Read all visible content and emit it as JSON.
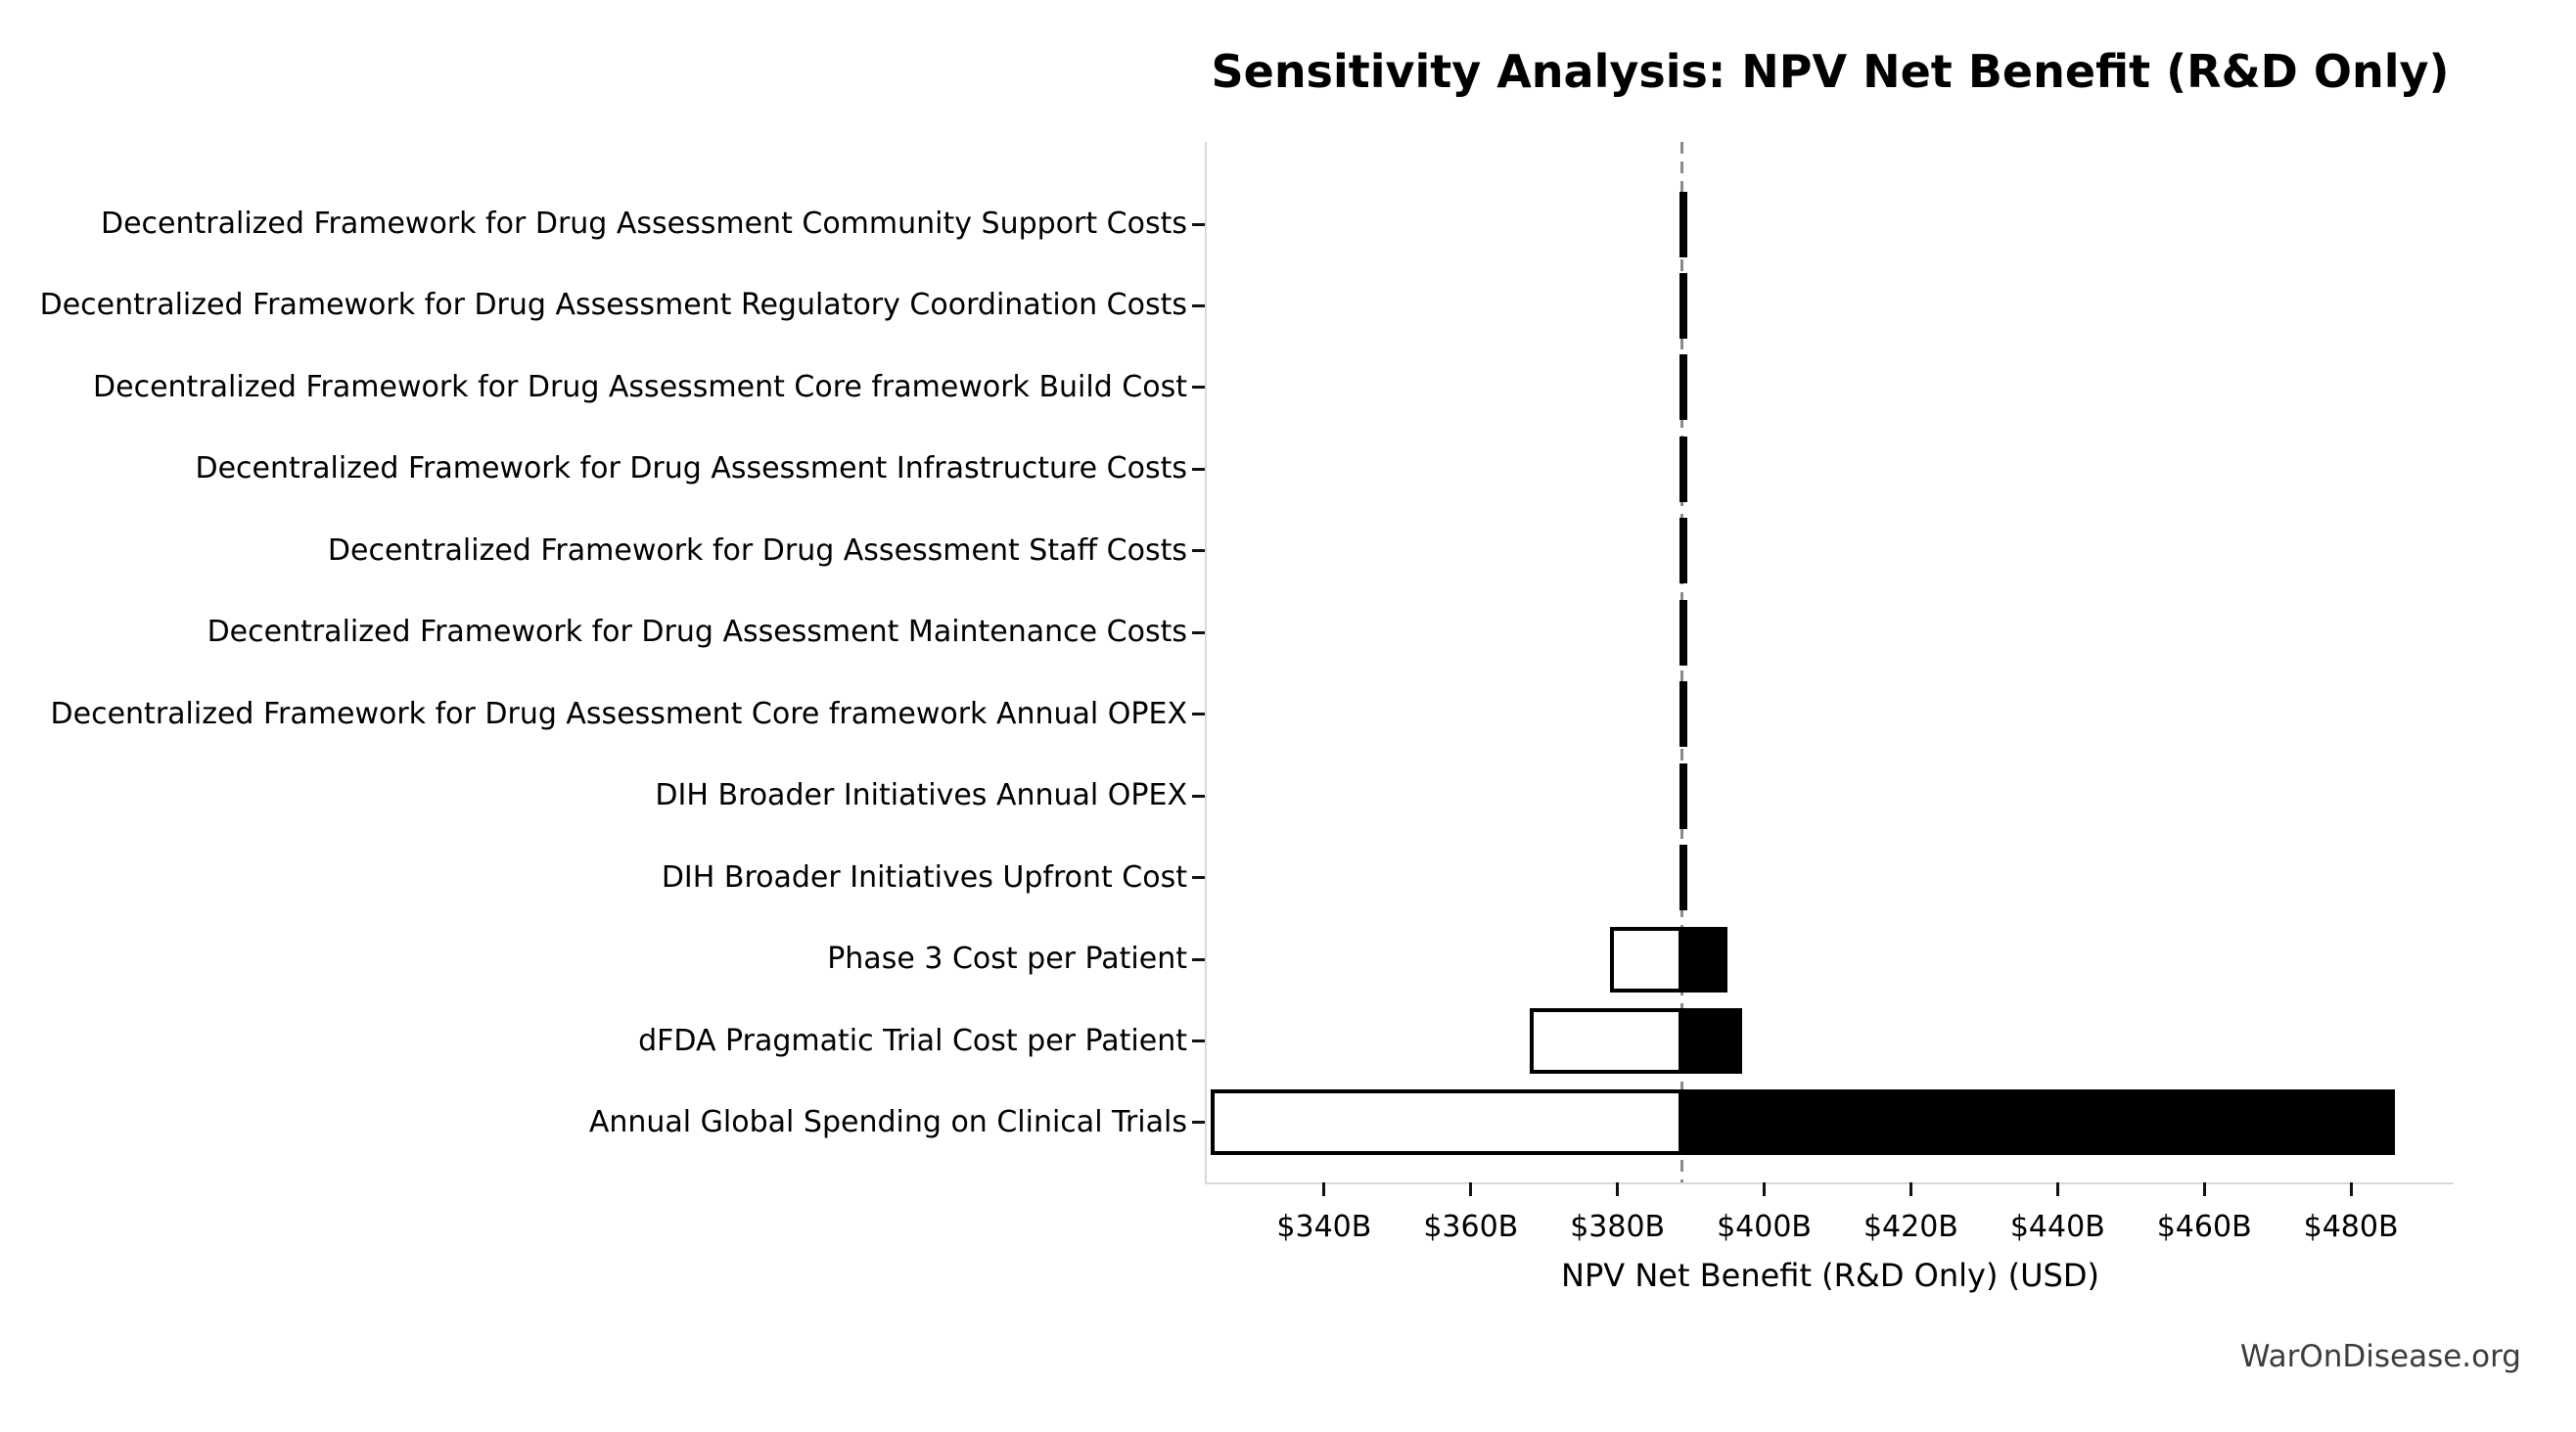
{
  "figure": {
    "watermark": "WarOnDisease.org"
  },
  "chart_data": {
    "type": "bar",
    "variant": "tornado-sensitivity",
    "orientation": "horizontal",
    "title": "Sensitivity Analysis: NPV Net Benefit (R&D Only)",
    "xlabel": "NPV Net Benefit (R&D Only) (USD)",
    "ylabel": "",
    "unit": "USD billions",
    "xlim": [
      324,
      494
    ],
    "xticks": [
      340,
      360,
      380,
      400,
      420,
      440,
      460,
      480
    ],
    "xtick_labels": [
      "$340B",
      "$360B",
      "$380B",
      "$400B",
      "$420B",
      "$440B",
      "$460B",
      "$480B"
    ],
    "baseline_value": 388.8,
    "grid": false,
    "legend": false,
    "categories": [
      "Decentralized Framework for Drug Assessment Community Support Costs",
      "Decentralized Framework for Drug Assessment Regulatory Coordination Costs",
      "Decentralized Framework for Drug Assessment Core framework Build Cost",
      "Decentralized Framework for Drug Assessment Infrastructure Costs",
      "Decentralized Framework for Drug Assessment Staff Costs",
      "Decentralized Framework for Drug Assessment Maintenance Costs",
      "Decentralized Framework for Drug Assessment Core framework Annual OPEX",
      "DIH Broader Initiatives Annual OPEX",
      "DIH Broader Initiatives Upfront Cost",
      "Phase 3 Cost per Patient",
      "dFDA Pragmatic Trial Cost per Patient",
      "Annual Global Spending on Clinical Trials"
    ],
    "bars": [
      {
        "label": "Decentralized Framework for Drug Assessment Community Support Costs",
        "low": 388.5,
        "high": 389.1
      },
      {
        "label": "Decentralized Framework for Drug Assessment Regulatory Coordination Costs",
        "low": 388.5,
        "high": 389.1
      },
      {
        "label": "Decentralized Framework for Drug Assessment Core framework Build Cost",
        "low": 388.5,
        "high": 389.1
      },
      {
        "label": "Decentralized Framework for Drug Assessment Infrastructure Costs",
        "low": 388.5,
        "high": 389.1
      },
      {
        "label": "Decentralized Framework for Drug Assessment Staff Costs",
        "low": 388.5,
        "high": 389.1
      },
      {
        "label": "Decentralized Framework for Drug Assessment Maintenance Costs",
        "low": 388.5,
        "high": 389.1
      },
      {
        "label": "Decentralized Framework for Drug Assessment Core framework Annual OPEX",
        "low": 388.5,
        "high": 389.1
      },
      {
        "label": "DIH Broader Initiatives Annual OPEX",
        "low": 388.5,
        "high": 389.1
      },
      {
        "label": "DIH Broader Initiatives Upfront Cost",
        "low": 388.5,
        "high": 389.1
      },
      {
        "label": "Phase 3 Cost per Patient",
        "low": 379.0,
        "high": 395.0
      },
      {
        "label": "dFDA Pragmatic Trial Cost per Patient",
        "low": 368.0,
        "high": 397.0
      },
      {
        "label": "Annual Global Spending on Clinical Trials",
        "low": 324.5,
        "high": 486.0
      }
    ],
    "colors": {
      "low_side_fill": "#ffffff",
      "low_side_edge": "#000000",
      "high_side_fill": "#000000",
      "baseline_line": "#8a8a8a",
      "spine": "#d9d9d9",
      "tick_mark": "#111111",
      "text": "#000000",
      "watermark_text": "#3d3d3d"
    }
  }
}
